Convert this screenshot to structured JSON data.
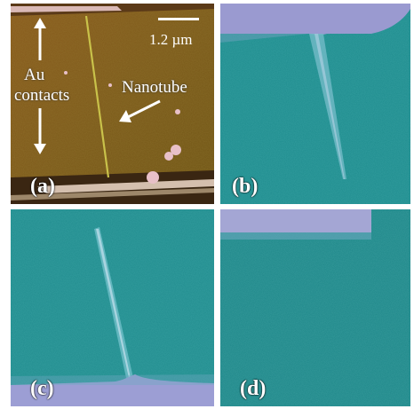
{
  "figure": {
    "panels": [
      {
        "id": "a",
        "label": "(a)"
      },
      {
        "id": "b",
        "label": "(b)"
      },
      {
        "id": "c",
        "label": "(c)"
      },
      {
        "id": "d",
        "label": "(d)"
      }
    ],
    "annotations": {
      "scale_bar": "1.2 µm",
      "au_line1": "Au",
      "au_line2": "contacts",
      "nanotube": "Nanotube"
    }
  }
}
